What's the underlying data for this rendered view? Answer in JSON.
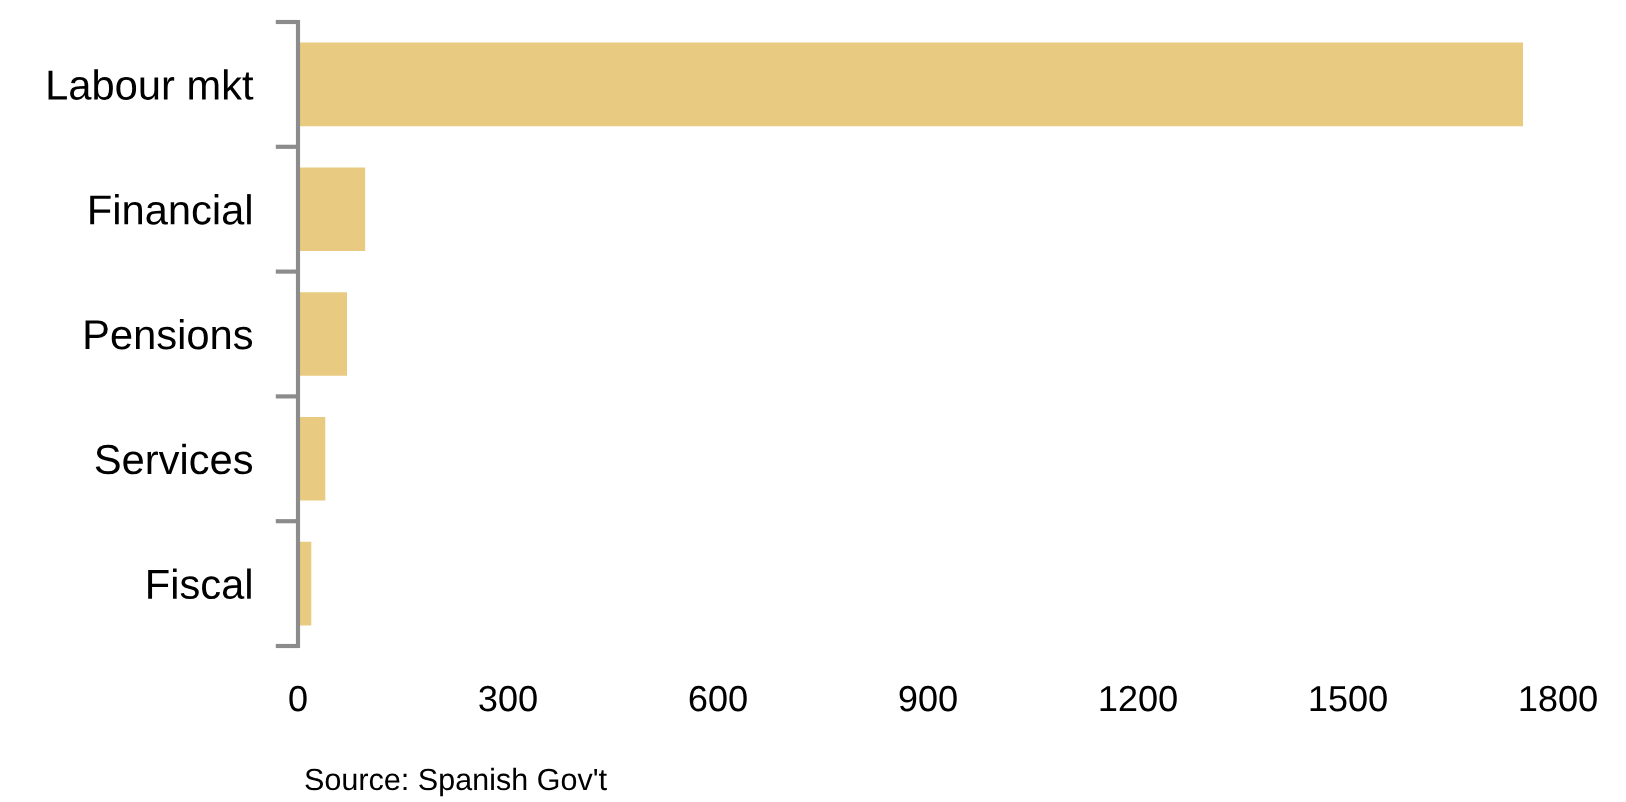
{
  "chart_data": {
    "type": "bar",
    "orientation": "horizontal",
    "categories": [
      "Labour mkt",
      "Financial",
      "Pensions",
      "Services",
      "Fiscal"
    ],
    "values": [
      1750,
      96,
      70,
      39,
      19
    ],
    "color": "#e8cb80",
    "xlim": [
      0,
      1800
    ],
    "xticks": [
      0,
      300,
      600,
      900,
      1200,
      1500,
      1800
    ],
    "grid": false,
    "legend": false,
    "annotations": [
      "Source: Spanish Gov't"
    ]
  }
}
